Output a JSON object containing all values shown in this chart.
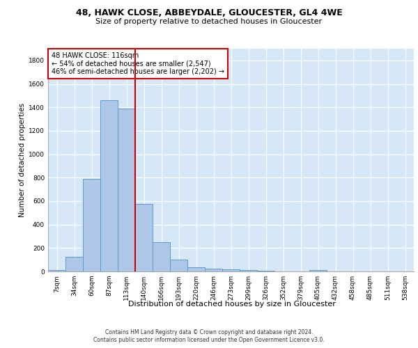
{
  "title1": "48, HAWK CLOSE, ABBEYDALE, GLOUCESTER, GL4 4WE",
  "title2": "Size of property relative to detached houses in Gloucester",
  "xlabel": "Distribution of detached houses by size in Gloucester",
  "ylabel": "Number of detached properties",
  "footer1": "Contains HM Land Registry data © Crown copyright and database right 2024.",
  "footer2": "Contains public sector information licensed under the Open Government Licence v3.0.",
  "annotation_line1": "48 HAWK CLOSE: 116sqm",
  "annotation_line2": "← 54% of detached houses are smaller (2,547)",
  "annotation_line3": "46% of semi-detached houses are larger (2,202) →",
  "bar_color": "#aec6e8",
  "bar_edge_color": "#5b9bd5",
  "vline_color": "#cc0000",
  "categories": [
    "7sqm",
    "34sqm",
    "60sqm",
    "87sqm",
    "113sqm",
    "140sqm",
    "166sqm",
    "193sqm",
    "220sqm",
    "246sqm",
    "273sqm",
    "299sqm",
    "326sqm",
    "352sqm",
    "379sqm",
    "405sqm",
    "432sqm",
    "458sqm",
    "485sqm",
    "511sqm",
    "538sqm"
  ],
  "values": [
    10,
    125,
    790,
    1460,
    1390,
    575,
    250,
    103,
    35,
    25,
    15,
    10,
    5,
    0,
    0,
    10,
    0,
    0,
    0,
    0,
    0
  ],
  "ylim": [
    0,
    1900
  ],
  "yticks": [
    0,
    200,
    400,
    600,
    800,
    1000,
    1200,
    1400,
    1600,
    1800
  ],
  "background_color": "#d6e8f7",
  "title1_fontsize": 9,
  "title2_fontsize": 8,
  "ylabel_fontsize": 7.5,
  "tick_fontsize": 6.5,
  "xlabel_fontsize": 8,
  "footer_fontsize": 5.5,
  "annotation_fontsize": 7
}
